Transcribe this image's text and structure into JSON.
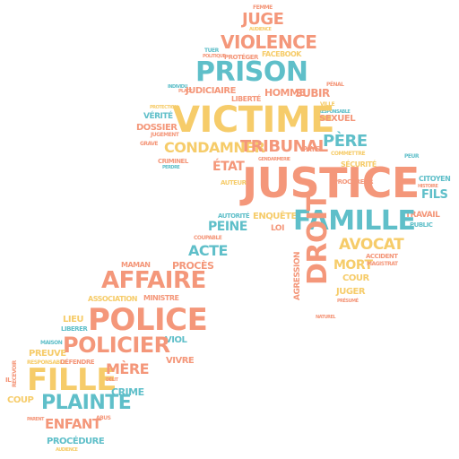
{
  "palette": {
    "orange": "#F4977A",
    "teal": "#5FBFC9",
    "yellow": "#F6CC6A"
  },
  "words": {
    "justice": "JUSTICE",
    "victime": "VICTIME",
    "prison": "PRISON",
    "famille": "FAMILLE",
    "police": "POLICE",
    "fille": "FILLE",
    "plainte": "PLAINTE",
    "policier": "POLICIER",
    "affaire": "AFFAIRE",
    "droit": "DROIT",
    "violence": "VIOLENCE",
    "juge": "JUGE",
    "condamner": "CONDAMNER",
    "tribunal": "TRIBUNAL",
    "avocat": "AVOCAT",
    "pere": "PÈRE",
    "etat": "ÉTAT",
    "peine": "PEINE",
    "mort": "MORT",
    "enfant": "ENFANT",
    "mere": "MÈRE",
    "fils": "FILS",
    "acte": "ACTE",
    "judiciaire": "JUDICIAIRE",
    "homme": "HOMME",
    "subir": "SUBIR",
    "procedure": "PROCÉDURE",
    "crime": "CRIME",
    "travail": "TRAVAIL",
    "enquete": "ENQUÊTE",
    "proces": "PROCÈS",
    "preuve": "PREUVE",
    "viol": "VIOL",
    "vivre": "VIVRE",
    "liberer": "LIBERER",
    "juger": "JUGER",
    "dossier": "DOSSIER",
    "criminel": "CRIMINEL",
    "sexuel": "SEXUEL",
    "public": "PUBLIC",
    "coup": "COUP",
    "lieu": "LIEU",
    "maman": "MAMAN",
    "ministre": "MINISTRE",
    "association": "ASSOCIATION",
    "verite": "VÉRITÉ",
    "aggression": "AGRESSION",
    "auteur": "AUTEUR",
    "autorite": "AUTORITÉ",
    "cour": "COUR",
    "citoyen": "CITOYEN",
    "coupable": "COUPABLE",
    "loi": "LOI",
    "facebook": "FACEBOOK",
    "proteger": "PROTÉGER",
    "pays": "PAYS",
    "liberte": "LIBERTÉ",
    "defendre": "DÉFENDRE",
    "grave": "GRAVE",
    "perdre": "PERDRE",
    "securite": "SÉCURITÉ",
    "maison": "MAISON",
    "responsable": "RESPONSABLE",
    "parent": "PARENT",
    "abus": "ABUS",
    "accident": "ACCIDENT",
    "magistrat": "MAGISTRAT",
    "presume": "PRÉSUMÉ",
    "recevoir": "RECEVOIR",
    "fait": "FAIT",
    "ville": "VILLE",
    "penal": "PÉNAL",
    "mari": "MARI",
    "femme": "FEMME",
    "peur": "PEUR",
    "droits": "DROITS",
    "jugement": "JUGEMENT",
    "amour": "AMOUR",
    "reponse": "RÉPONSE",
    "risque": "RISQUE",
    "demande": "DEMANDE",
    "corps": "CORPS",
    "gendarmerie": "GENDARMERIE",
    "procureur": "PROCUREUR",
    "defense": "DÉFENSE",
    "temoin": "TÉMOIN",
    "condamnation": "CONDAMNATION",
    "institution": "INSTITUTION",
    "reparation": "RÉPARATION",
    "audience": "AUDIENCE",
    "tuer": "TUER",
    "politique": "POLITIQUE",
    "individu": "INDIVIDU",
    "place": "PLACE",
    "nom": "NOM",
    "vrai": "VRAI",
    "situation": "SITUATION",
    "rendre": "RENDRE",
    "mesure": "MESURE",
    "protection": "PROTECTION",
    "respect": "RESPECT",
    "innocent": "INNOCENT",
    "histoire": "HISTOIRE",
    "societe": "SOCIÉTÉ",
    "pouvoir": "POUVOIR",
    "plaindre": "PLAINDRE",
    "payer": "PAYER",
    "force": "FORCE",
    "delit": "DÉLIT",
    "nature": "NATUREL",
    "il": "IL",
    "enfants": "ENFANTS",
    "condamne": "CONDAMNÉ",
    "commettre": "COMMETTRE",
    "ordre": "ORDRE",
    "arme": "ARMÉ",
    "chef": "CHEF",
    "juste": "JUSTE",
    "etre": "ÊTRE",
    "aide": "AIDE",
    "loi2": "LOI",
    "jour": "JOUR",
    "vie": "VIE",
    "sans": "SANS"
  }
}
